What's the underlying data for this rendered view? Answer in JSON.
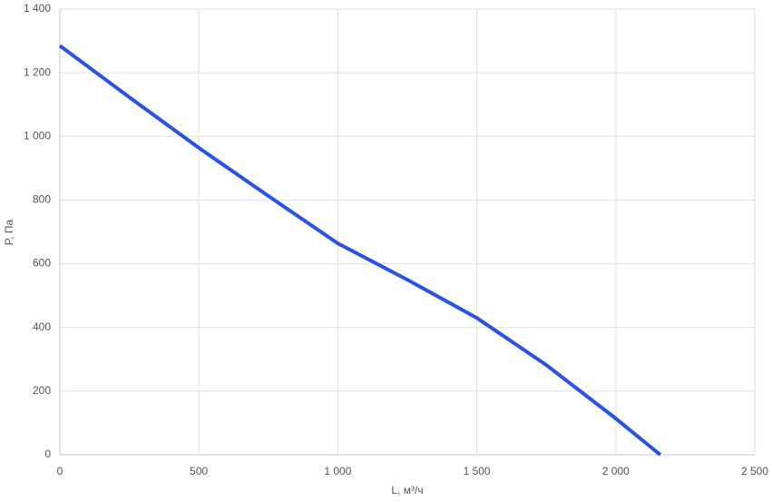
{
  "chart_data": {
    "type": "line",
    "x_label": "L, м³/ч",
    "y_label": "P, Па",
    "series": [
      {
        "name": null,
        "color": "#2a52e6",
        "x": [
          0,
          250,
          500,
          750,
          1000,
          1250,
          1500,
          1750,
          2000,
          2160
        ],
        "values": [
          1285,
          1123,
          964,
          813,
          664,
          550,
          430,
          282,
          114,
          0
        ]
      }
    ],
    "xlim": [
      0,
      2500
    ],
    "xticks": [
      0,
      500,
      {
        "value": 1000,
        "label": "1 000"
      },
      {
        "value": 1500,
        "label": "1 500"
      },
      {
        "value": 2000,
        "label": "2 000"
      },
      {
        "value": 2500,
        "label": "2 500"
      }
    ],
    "ylim": [
      0,
      1400
    ],
    "yticks": [
      0,
      200,
      400,
      600,
      800,
      {
        "value": 1000,
        "label": "1 000"
      },
      {
        "value": 1200,
        "label": "1 200"
      },
      {
        "value": 1400,
        "label": "1 400"
      }
    ],
    "grid": true
  }
}
